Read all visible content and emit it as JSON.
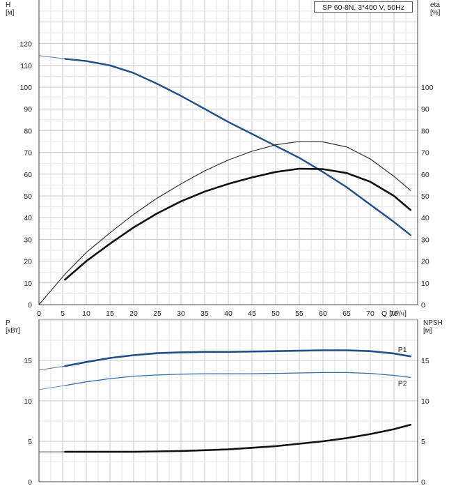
{
  "chart_data": [
    {
      "type": "line",
      "title": "SP 60-8N, 3*400 V, 50Hz",
      "xlabel": "Q [м³/ч]",
      "ylabel_left": "H\n[м]",
      "ylabel_right": "eta\n[%]",
      "xlim": [
        0,
        80
      ],
      "ylim_left": [
        0,
        130
      ],
      "ylim_right": [
        0,
        130
      ],
      "x_ticks": [
        "0",
        "5",
        "10",
        "15",
        "20",
        "25",
        "30",
        "35",
        "40",
        "45",
        "50",
        "55",
        "60",
        "65",
        "70",
        "75"
      ],
      "y_left_ticks": [
        "0",
        "10",
        "20",
        "30",
        "40",
        "50",
        "60",
        "70",
        "80",
        "90",
        "100",
        "110",
        "120"
      ],
      "y_right_ticks": [
        "0",
        "10",
        "20",
        "30",
        "40",
        "50",
        "60",
        "70",
        "80",
        "90",
        "100"
      ],
      "grid": true,
      "series": [
        {
          "key": "H",
          "color": "#1f4e8c",
          "points": [
            [
              5.5,
              113
            ],
            [
              10,
              112
            ],
            [
              15,
              110
            ],
            [
              20,
              106.5
            ],
            [
              25,
              101.5
            ],
            [
              30,
              96
            ],
            [
              35,
              90
            ],
            [
              40,
              84
            ],
            [
              45,
              78.5
            ],
            [
              50,
              73
            ],
            [
              55,
              67.5
            ],
            [
              60,
              61
            ],
            [
              65,
              54
            ],
            [
              70,
              46
            ],
            [
              75,
              38
            ],
            [
              78.5,
              32
            ]
          ],
          "extension": [
            [
              0,
              114.5
            ],
            [
              5.5,
              113
            ]
          ]
        },
        {
          "key": "eta_thin",
          "color": "#222222",
          "points": [
            [
              0,
              0
            ],
            [
              5.5,
              14
            ],
            [
              10,
              24
            ],
            [
              15,
              33
            ],
            [
              20,
              41.5
            ],
            [
              25,
              49
            ],
            [
              30,
              55.5
            ],
            [
              35,
              61.5
            ],
            [
              40,
              66.5
            ],
            [
              45,
              70.5
            ],
            [
              50,
              73.5
            ],
            [
              55,
              75
            ],
            [
              60,
              74.8
            ],
            [
              65,
              72.5
            ],
            [
              70,
              67
            ],
            [
              75,
              59
            ],
            [
              78.5,
              52.5
            ]
          ]
        },
        {
          "key": "eta_thick",
          "color": "#111111",
          "points": [
            [
              5.5,
              11.5
            ],
            [
              10,
              20
            ],
            [
              15,
              28
            ],
            [
              20,
              35.5
            ],
            [
              25,
              42
            ],
            [
              30,
              47.5
            ],
            [
              35,
              52
            ],
            [
              40,
              55.5
            ],
            [
              45,
              58.5
            ],
            [
              50,
              61
            ],
            [
              55,
              62.5
            ],
            [
              60,
              62.3
            ],
            [
              65,
              60.5
            ],
            [
              70,
              56.5
            ],
            [
              75,
              50
            ],
            [
              78.5,
              43.5
            ]
          ]
        }
      ]
    },
    {
      "type": "line",
      "ylabel_left": "P\n[кВт]",
      "ylabel_right": "NPSH\n[м]",
      "xlim": [
        0,
        80
      ],
      "ylim_left": [
        0,
        19
      ],
      "ylim_right": [
        0,
        19
      ],
      "y_left_ticks": [
        "0",
        "5",
        "10",
        "15"
      ],
      "y_right_ticks": [
        "0",
        "5",
        "10",
        "15"
      ],
      "grid": true,
      "series": [
        {
          "key": "P1",
          "name": "P1",
          "color": "#1f4e8c",
          "points": [
            [
              5.5,
              14.3
            ],
            [
              10,
              14.8
            ],
            [
              15,
              15.3
            ],
            [
              20,
              15.65
            ],
            [
              25,
              15.9
            ],
            [
              30,
              16.0
            ],
            [
              35,
              16.05
            ],
            [
              40,
              16.05
            ],
            [
              45,
              16.1
            ],
            [
              50,
              16.15
            ],
            [
              55,
              16.2
            ],
            [
              60,
              16.25
            ],
            [
              65,
              16.25
            ],
            [
              70,
              16.15
            ],
            [
              75,
              15.85
            ],
            [
              78.5,
              15.5
            ]
          ],
          "extension": [
            [
              0,
              13.8
            ],
            [
              5.5,
              14.3
            ]
          ]
        },
        {
          "key": "P2",
          "name": "P2",
          "color": "#2f6db0",
          "points": [
            [
              5.5,
              11.9
            ],
            [
              10,
              12.35
            ],
            [
              15,
              12.75
            ],
            [
              20,
              13.05
            ],
            [
              25,
              13.2
            ],
            [
              30,
              13.3
            ],
            [
              35,
              13.35
            ],
            [
              40,
              13.35
            ],
            [
              45,
              13.35
            ],
            [
              50,
              13.4
            ],
            [
              55,
              13.45
            ],
            [
              60,
              13.5
            ],
            [
              65,
              13.5
            ],
            [
              70,
              13.4
            ],
            [
              75,
              13.15
            ],
            [
              78.5,
              12.9
            ]
          ],
          "extension": [
            [
              0,
              11.4
            ],
            [
              5.5,
              11.9
            ]
          ]
        },
        {
          "key": "NPSH",
          "color": "#111111",
          "points": [
            [
              5.5,
              3.7
            ],
            [
              10,
              3.7
            ],
            [
              15,
              3.7
            ],
            [
              20,
              3.7
            ],
            [
              25,
              3.75
            ],
            [
              30,
              3.8
            ],
            [
              35,
              3.9
            ],
            [
              40,
              4.0
            ],
            [
              45,
              4.2
            ],
            [
              50,
              4.4
            ],
            [
              55,
              4.7
            ],
            [
              60,
              5.0
            ],
            [
              65,
              5.4
            ],
            [
              70,
              5.9
            ],
            [
              75,
              6.5
            ],
            [
              78.5,
              7.05
            ]
          ],
          "extension": [
            [
              0,
              3.7
            ],
            [
              5.5,
              3.7
            ]
          ]
        }
      ]
    }
  ]
}
